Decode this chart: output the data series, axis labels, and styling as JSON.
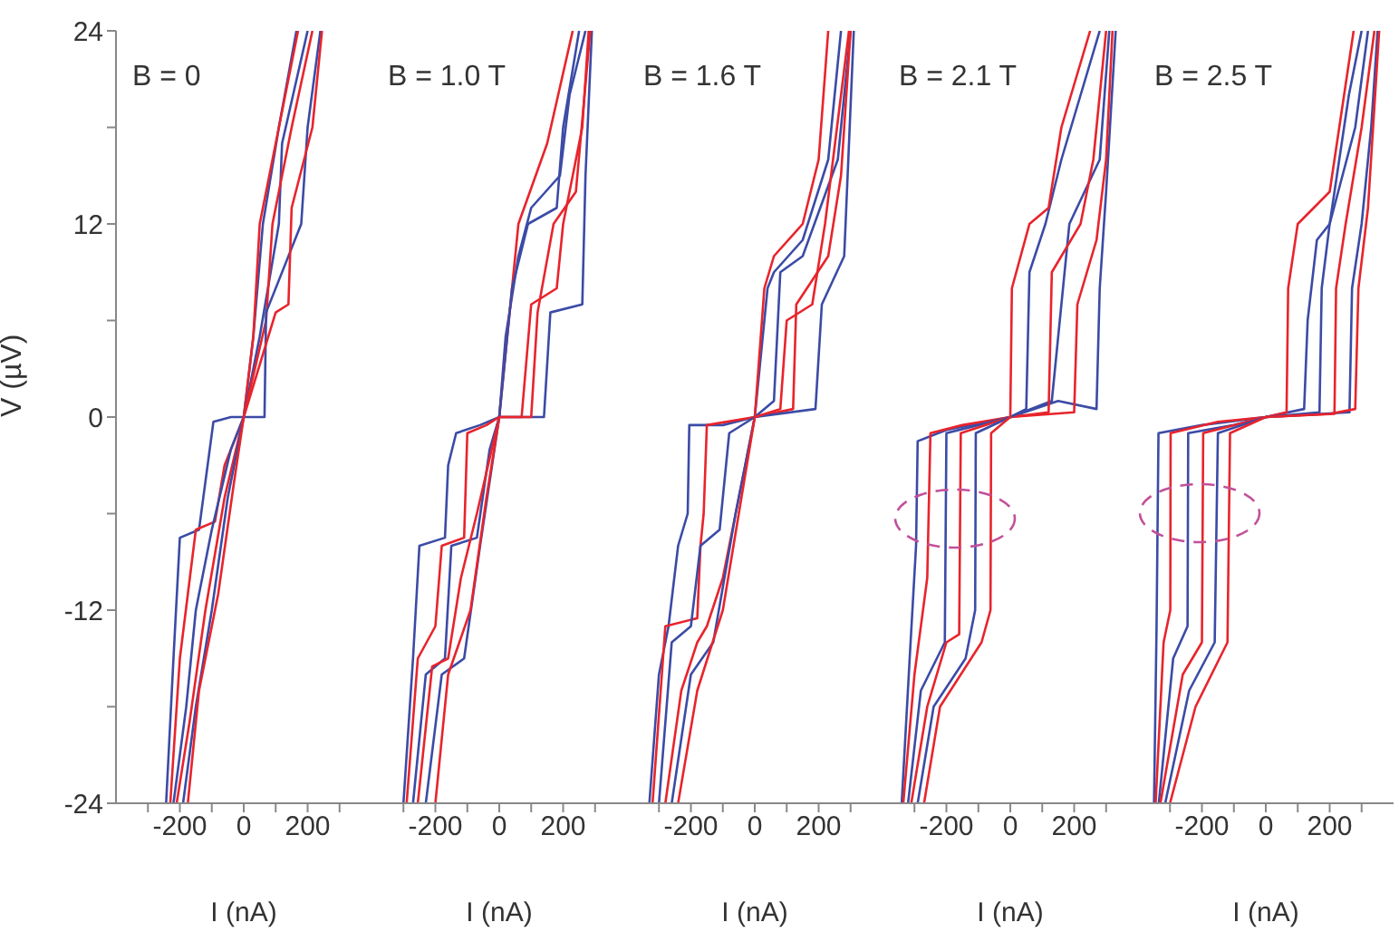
{
  "chart_data": [
    {
      "type": "line",
      "title": "B = 0",
      "xlabel": "I (nA)",
      "ylabel": "V (µV)",
      "xlim": [
        -400,
        400
      ],
      "xticks": [
        {
          "value": -300,
          "label": null
        },
        -200,
        {
          "value": -100,
          "label": null
        },
        0,
        {
          "value": 100,
          "label": null
        },
        200,
        {
          "value": 300,
          "label": null
        }
      ],
      "ylim": [
        -24,
        24
      ],
      "yticks": [
        -24,
        {
          "value": -18,
          "label": null
        },
        -12,
        {
          "value": -6,
          "label": null
        },
        0,
        {
          "value": 6,
          "label": null
        },
        12,
        {
          "value": 18,
          "label": null
        },
        24
      ],
      "series": [
        {
          "color": "#3b4ba6",
          "x": [
            -243,
            -220,
            -200,
            -140,
            -95,
            -40,
            0,
            30,
            60,
            110,
            165
          ],
          "values": [
            -24,
            -15,
            -7.5,
            -7,
            -0.3,
            0,
            0,
            5,
            12,
            18,
            24
          ]
        },
        {
          "color": "#e8242c",
          "x": [
            -230,
            -200,
            -150,
            -90,
            -60,
            0,
            30,
            50,
            110,
            170
          ],
          "values": [
            -24,
            -15,
            -7,
            -6.5,
            -3,
            0,
            5,
            12,
            18,
            24
          ]
        },
        {
          "color": "#3b4ba6",
          "x": [
            -220,
            -180,
            -150,
            -100,
            -40,
            0,
            50,
            110,
            120,
            200
          ],
          "values": [
            -24,
            -18,
            -12,
            -7,
            -2,
            0,
            5,
            12,
            17,
            24
          ]
        },
        {
          "color": "#e8242c",
          "x": [
            -210,
            -170,
            -120,
            -60,
            0,
            70,
            90,
            150,
            215
          ],
          "values": [
            -24,
            -19,
            -12,
            -5,
            0,
            6,
            12,
            18,
            24
          ]
        },
        {
          "color": "#3b4ba6",
          "x": [
            -190,
            -150,
            -100,
            -50,
            0,
            65,
            70,
            180,
            200,
            240
          ],
          "values": [
            -24,
            -18,
            -12,
            -5,
            0,
            0,
            6.5,
            12,
            18,
            24
          ]
        },
        {
          "color": "#e8242c",
          "x": [
            -175,
            -140,
            -80,
            -30,
            0,
            100,
            140,
            150,
            215,
            245
          ],
          "values": [
            -24,
            -17,
            -11,
            -4,
            0,
            6.5,
            7,
            13,
            18,
            24
          ]
        }
      ]
    },
    {
      "type": "line",
      "title": "B = 1.0 T",
      "xlabel": "I (nA)",
      "tick_labels": "x",
      "xlim": [
        -400,
        400
      ],
      "xticks": [
        {
          "value": -300,
          "label": null
        },
        -200,
        {
          "value": -100,
          "label": null
        },
        0,
        {
          "value": 100,
          "label": null
        },
        200,
        {
          "value": 300,
          "label": null
        }
      ],
      "ylim": [
        -24,
        24
      ],
      "series": [
        {
          "color": "#3b4ba6",
          "x": [
            -300,
            -270,
            -250,
            -170,
            -160,
            -135,
            -60,
            0,
            20,
            60,
            100,
            190,
            220,
            270
          ],
          "values": [
            -24,
            -15,
            -8,
            -7.5,
            -3,
            -1,
            -0.5,
            0,
            5,
            10,
            13,
            15,
            20,
            24
          ]
        },
        {
          "color": "#e8242c",
          "x": [
            -290,
            -255,
            -200,
            -180,
            -110,
            -100,
            -40,
            0,
            30,
            60,
            150,
            230
          ],
          "values": [
            -24,
            -15,
            -13,
            -8,
            -7.5,
            -1,
            -0.5,
            0,
            6,
            12,
            17,
            24
          ]
        },
        {
          "color": "#3b4ba6",
          "x": [
            -270,
            -230,
            -170,
            -150,
            -70,
            -30,
            0,
            40,
            90,
            180,
            200,
            250
          ],
          "values": [
            -24,
            -16,
            -15,
            -8,
            -7.5,
            -2,
            0,
            8,
            12,
            13,
            18,
            24
          ]
        },
        {
          "color": "#e8242c",
          "x": [
            -255,
            -210,
            -160,
            -120,
            -70,
            0,
            70,
            100,
            180,
            200,
            260,
            280
          ],
          "values": [
            -24,
            -15.5,
            -15,
            -10,
            -6,
            0,
            0,
            7,
            8,
            12,
            18,
            24
          ]
        },
        {
          "color": "#3b4ba6",
          "x": [
            -230,
            -180,
            -110,
            -60,
            0,
            140,
            160,
            260,
            270,
            290
          ],
          "values": [
            -24,
            -16,
            -15,
            -8,
            0,
            0,
            6.5,
            7,
            15,
            24
          ]
        },
        {
          "color": "#e8242c",
          "x": [
            -200,
            -160,
            -90,
            -40,
            0,
            100,
            120,
            170,
            240,
            285
          ],
          "values": [
            -24,
            -16,
            -12,
            -5,
            0,
            0,
            6.5,
            12,
            14,
            24
          ]
        }
      ]
    },
    {
      "type": "line",
      "title": "B = 1.6 T",
      "xlabel": "I (nA)",
      "tick_labels": "x",
      "xlim": [
        -400,
        400
      ],
      "xticks": [
        {
          "value": -300,
          "label": null
        },
        -200,
        {
          "value": -100,
          "label": null
        },
        0,
        {
          "value": 100,
          "label": null
        },
        200,
        {
          "value": 300,
          "label": null
        }
      ],
      "ylim": [
        -24,
        24
      ],
      "series": [
        {
          "color": "#3b4ba6",
          "x": [
            -330,
            -300,
            -270,
            -240,
            -210,
            -205,
            -100,
            0,
            40,
            60,
            150,
            230,
            270
          ],
          "values": [
            -24,
            -16,
            -13,
            -8,
            -6,
            -0.5,
            -0.5,
            0,
            8,
            9,
            11,
            16,
            24
          ]
        },
        {
          "color": "#e8242c",
          "x": [
            -320,
            -280,
            -180,
            -170,
            -160,
            -150,
            0,
            30,
            60,
            150,
            200,
            230
          ],
          "values": [
            -24,
            -13,
            -12.5,
            -8,
            -6,
            -0.5,
            0,
            8,
            10,
            12,
            16,
            24
          ]
        },
        {
          "color": "#3b4ba6",
          "x": [
            -300,
            -260,
            -200,
            -170,
            -110,
            -80,
            0,
            60,
            80,
            150,
            260,
            300
          ],
          "values": [
            -24,
            -14,
            -13,
            -8,
            -7,
            -1,
            0,
            1,
            9,
            10,
            16,
            24
          ]
        },
        {
          "color": "#e8242c",
          "x": [
            -280,
            -230,
            -180,
            -150,
            -100,
            -60,
            0,
            120,
            130,
            230,
            270,
            300
          ],
          "values": [
            -24,
            -17,
            -14,
            -13,
            -10,
            -6,
            0,
            0.5,
            7,
            10,
            15,
            24
          ]
        },
        {
          "color": "#3b4ba6",
          "x": [
            -260,
            -200,
            -130,
            -60,
            0,
            190,
            210,
            280,
            310
          ],
          "values": [
            -24,
            -16,
            -14,
            -6,
            0,
            0.5,
            7,
            10,
            24
          ]
        },
        {
          "color": "#e8242c",
          "x": [
            -240,
            -180,
            -100,
            -50,
            0,
            80,
            100,
            180,
            220,
            295
          ],
          "values": [
            -24,
            -17,
            -12,
            -6,
            0,
            0.5,
            6,
            7,
            12,
            24
          ]
        }
      ]
    },
    {
      "type": "line",
      "title": "B = 2.1 T",
      "xlabel": "I (nA)",
      "tick_labels": "x",
      "xlim": [
        -400,
        400
      ],
      "xticks": [
        {
          "value": -300,
          "label": null
        },
        -200,
        {
          "value": -100,
          "label": null
        },
        0,
        {
          "value": 100,
          "label": null
        },
        200,
        {
          "value": 300,
          "label": null
        }
      ],
      "ylim": [
        -24,
        24
      ],
      "series": [
        {
          "color": "#3b4ba6",
          "x": [
            -340,
            -315,
            -295,
            -290,
            -200,
            0,
            150,
            270,
            280,
            300,
            330
          ],
          "values": [
            -24,
            -15,
            -8,
            -1.5,
            -0.8,
            0,
            1,
            0.5,
            8,
            14,
            24
          ]
        },
        {
          "color": "#e8242c",
          "x": [
            -335,
            -300,
            -260,
            -250,
            -150,
            0,
            200,
            210,
            270,
            300,
            320
          ],
          "values": [
            -24,
            -16,
            -10,
            -1,
            -0.5,
            0,
            0.3,
            7,
            11,
            16,
            24
          ]
        },
        {
          "color": "#3b4ba6",
          "x": [
            -320,
            -280,
            -205,
            -200,
            -100,
            0,
            130,
            150,
            185,
            280,
            310
          ],
          "values": [
            -24,
            -17,
            -14,
            -1,
            -0.5,
            0,
            1,
            5,
            12,
            16,
            24
          ]
        },
        {
          "color": "#e8242c",
          "x": [
            -310,
            -260,
            -200,
            -160,
            -155,
            0,
            120,
            130,
            220,
            260,
            300
          ],
          "values": [
            -24,
            -18,
            -14,
            -13.5,
            -1,
            0,
            0.3,
            9,
            12,
            16,
            24
          ]
        },
        {
          "color": "#3b4ba6",
          "x": [
            -290,
            -240,
            -140,
            -110,
            -108,
            0,
            50,
            60,
            110,
            160,
            280
          ],
          "values": [
            -24,
            -18,
            -15,
            -12,
            -1,
            0,
            0.5,
            9,
            12,
            16,
            24
          ]
        },
        {
          "color": "#e8242c",
          "x": [
            -270,
            -220,
            -90,
            -62,
            -60,
            0,
            5,
            60,
            120,
            160,
            250
          ],
          "values": [
            -24,
            -18,
            -14,
            -12,
            -1,
            0,
            8,
            12,
            13,
            18,
            24
          ]
        }
      ]
    },
    {
      "type": "line",
      "title": "B = 2.5 T",
      "xlabel": "I (nA)",
      "tick_labels": "x",
      "xlim": [
        -400,
        400
      ],
      "xticks": [
        {
          "value": -300,
          "label": null
        },
        -200,
        {
          "value": -100,
          "label": null
        },
        0,
        {
          "value": 100,
          "label": null
        },
        200,
        {
          "value": 300,
          "label": null
        }
      ],
      "ylim": [
        -24,
        24
      ],
      "series": [
        {
          "color": "#3b4ba6",
          "x": [
            -350,
            -342,
            -336,
            -200,
            0,
            120,
            131,
            160,
            200,
            260,
            300
          ],
          "values": [
            -24,
            -13,
            -1,
            -0.5,
            0,
            0.5,
            6,
            11,
            12,
            20,
            24
          ]
        },
        {
          "color": "#e8242c",
          "x": [
            -345,
            -320,
            -299,
            -298,
            -150,
            0,
            65,
            70,
            100,
            200,
            275
          ],
          "values": [
            -24,
            -14,
            -12,
            -1,
            -0.3,
            0,
            0.3,
            8,
            12,
            14,
            24
          ]
        },
        {
          "color": "#3b4ba6",
          "x": [
            -335,
            -290,
            -245,
            -243,
            -100,
            0,
            168,
            175,
            200,
            280,
            320
          ],
          "values": [
            -24,
            -15,
            -13,
            -1,
            -0.5,
            0,
            0.3,
            8,
            12,
            18,
            24
          ]
        },
        {
          "color": "#e8242c",
          "x": [
            -330,
            -260,
            -200,
            -196,
            0,
            215,
            220,
            250,
            300,
            340
          ],
          "values": [
            -24,
            -16,
            -14,
            -1,
            0,
            0.2,
            8,
            12,
            18,
            24
          ]
        },
        {
          "color": "#3b4ba6",
          "x": [
            -315,
            -240,
            -160,
            -150,
            0,
            262,
            270,
            300,
            330,
            350
          ],
          "values": [
            -24,
            -17,
            -14,
            -1,
            0,
            0.3,
            8,
            12,
            18,
            24
          ]
        },
        {
          "color": "#e8242c",
          "x": [
            -300,
            -220,
            -120,
            -112,
            0,
            200,
            280,
            290,
            320,
            355
          ],
          "values": [
            -24,
            -18,
            -14,
            -1,
            0,
            0.2,
            0.5,
            8,
            13,
            24
          ]
        }
      ]
    }
  ]
}
